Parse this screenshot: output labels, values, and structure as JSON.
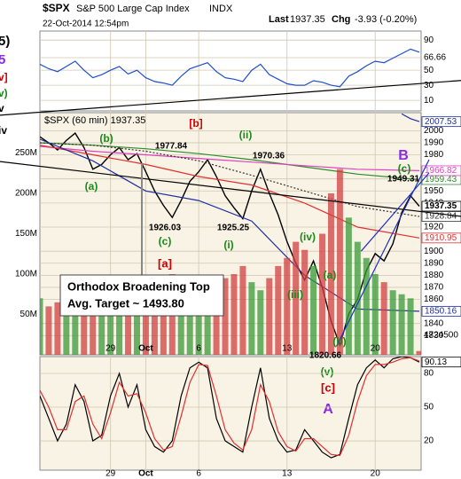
{
  "header": {
    "symbol": "$SPX",
    "name": "S&P 500 Large Cap Index",
    "exchange": "INDX",
    "datetime": "22-Oct-2014 12:54pm",
    "last_label": "Last",
    "last": "1937.35",
    "chg_label": "Chg",
    "chg": "-3.93 (-0.20%)"
  },
  "left_margin": [
    {
      "text": "5)",
      "color": "#000000"
    },
    {
      "text": "5",
      "color": "#8a2be2"
    },
    {
      "text": "v]",
      "color": "#cc0000"
    },
    {
      "text": "v)",
      "color": "#1a8a1a"
    },
    {
      "text": "v",
      "color": "#000000"
    },
    {
      "text": "iv",
      "color": "#000000"
    }
  ],
  "callout": {
    "lines": [
      "Orthodox Broadening Top",
      "Avg. Target ~ 1493.80"
    ]
  },
  "chart_data": [
    {
      "type": "line",
      "xlim": [
        0,
        21.6
      ],
      "ylim": [
        -4,
        102
      ],
      "yticks": [
        90,
        66.66,
        50,
        30,
        10
      ],
      "grid": true,
      "xticks": [
        {
          "value": 4,
          "label": "29"
        },
        {
          "value": 6,
          "label": "Oct"
        },
        {
          "value": 9,
          "label": "6"
        },
        {
          "value": 14,
          "label": "13"
        },
        {
          "value": 19,
          "label": "20"
        }
      ],
      "x": [
        0,
        0.5,
        1,
        1.5,
        2,
        2.5,
        3,
        3.5,
        4,
        4.5,
        5,
        5.5,
        6,
        6.5,
        7,
        7.5,
        8,
        8.5,
        9,
        9.5,
        10,
        10.5,
        11,
        11.5,
        12,
        12.5,
        13,
        13.5,
        14,
        14.5,
        15,
        15.5,
        16,
        16.5,
        17,
        17.5,
        18,
        18.5,
        19,
        19.5,
        20,
        20.5,
        21,
        21.5
      ],
      "series": [
        {
          "color": "#1f4fc9",
          "values": [
            58,
            52,
            48,
            55,
            62,
            50,
            40,
            44,
            50,
            55,
            45,
            50,
            40,
            35,
            33,
            30,
            42,
            52,
            56,
            60,
            48,
            40,
            38,
            35,
            50,
            58,
            44,
            38,
            32,
            30,
            30,
            36,
            34,
            30,
            28,
            42,
            48,
            56,
            62,
            60,
            66,
            72,
            78,
            74
          ]
        }
      ],
      "trendlines": [
        {
          "color": "#000000",
          "x": [
            -2.3,
            24.4
          ],
          "values": [
            -9.8,
            37.3
          ]
        }
      ]
    },
    {
      "type": "line",
      "title": "$SPX (60 min) 1937.35",
      "xlim": [
        0,
        21.6
      ],
      "ylim": [
        1814,
        2015
      ],
      "grid": true,
      "yticks": [
        2000,
        1990,
        1980,
        1960,
        1950,
        1940,
        1920,
        1900,
        1890,
        1880,
        1870,
        1860,
        1840,
        1830
      ],
      "xticks": [
        {
          "value": 4,
          "label": "29"
        },
        {
          "value": 6,
          "label": "Oct"
        },
        {
          "value": 9,
          "label": "6"
        },
        {
          "value": 14,
          "label": "13"
        },
        {
          "value": 19,
          "label": "20"
        }
      ],
      "y2lim": [
        0,
        300000000
      ],
      "y2ticks": [
        {
          "value": 250000000,
          "label": "250M"
        },
        {
          "value": 200000000,
          "label": "200M"
        },
        {
          "value": 150000000,
          "label": "150M"
        },
        {
          "value": 100000000,
          "label": "100M"
        },
        {
          "value": 50000000,
          "label": "50M"
        }
      ],
      "x": [
        0,
        0.5,
        1,
        1.5,
        2,
        2.5,
        3,
        3.5,
        4,
        4.5,
        5,
        5.5,
        6,
        6.5,
        7,
        7.5,
        8,
        8.5,
        9,
        9.5,
        10,
        10.5,
        11,
        11.5,
        12,
        12.5,
        13,
        13.5,
        14,
        14.5,
        15,
        15.5,
        16,
        16.5,
        17,
        17.5,
        18,
        18.5,
        19,
        19.5,
        20,
        20.5,
        21,
        21.5
      ],
      "series": [
        {
          "color": "#000000",
          "width": 1.4,
          "label_box": true,
          "values": [
            1995,
            1990,
            1984,
            1992,
            1998,
            1986,
            1968,
            1972,
            1980,
            1986,
            1976,
            1981,
            1966,
            1950,
            1938,
            1928,
            1942,
            1958,
            1966,
            1976,
            1962,
            1946,
            1936,
            1927,
            1950,
            1968,
            1948,
            1930,
            1908,
            1890,
            1876,
            1892,
            1870,
            1842,
            1822,
            1848,
            1860,
            1884,
            1898,
            1892,
            1906,
            1932,
            1946,
            1937.35
          ]
        },
        {
          "color": "#2e8b2e",
          "label_box": true,
          "x": [
            0,
            3,
            6,
            9,
            12,
            15,
            18,
            21.5
          ],
          "values": [
            1990,
            1988,
            1985,
            1981,
            1976,
            1970,
            1964,
            1959.43
          ]
        },
        {
          "color": "#e040c0",
          "label_box": true,
          "x": [
            0,
            3,
            6,
            9,
            12,
            15,
            18,
            21.5
          ],
          "values": [
            1987,
            1983,
            1980,
            1977,
            1974,
            1971,
            1968,
            1966.82
          ]
        },
        {
          "color": "#333333",
          "dash": true,
          "label_box": true,
          "x": [
            0,
            3,
            6,
            9,
            12,
            15,
            18,
            21.5
          ],
          "values": [
            1990,
            1988,
            1983,
            1975,
            1963,
            1950,
            1937,
            1928.84
          ]
        },
        {
          "color": "#e03030",
          "label_box": true,
          "x": [
            0,
            3,
            6,
            9,
            12,
            15,
            18,
            21.5
          ],
          "values": [
            1988,
            1980,
            1972,
            1962,
            1955,
            1940,
            1920,
            1910.95
          ]
        },
        {
          "color": "#1f2fa0",
          "label_box": true,
          "x": [
            0,
            3,
            6,
            9,
            12,
            15,
            18,
            21.5
          ],
          "values": [
            1993,
            1975,
            1950,
            1942,
            1925,
            1880,
            1852,
            1850.16
          ]
        },
        {
          "color": "#1f2fa0",
          "label_box": true,
          "x": [
            20.5,
            21,
            21.5
          ],
          "values": [
            2014,
            2010,
            2007.53
          ]
        },
        {
          "type": "bar",
          "axis": "y2",
          "label_box": true,
          "up_color": "#3a9a3a",
          "down_color": "#d04040",
          "values": [
            70000000,
            60000000,
            65000000,
            55000000,
            80000000,
            75000000,
            90000000,
            70000000,
            60000000,
            65000000,
            70000000,
            60000000,
            85000000,
            90000000,
            95000000,
            100000000,
            80000000,
            70000000,
            65000000,
            60000000,
            85000000,
            95000000,
            100000000,
            110000000,
            90000000,
            80000000,
            95000000,
            110000000,
            120000000,
            140000000,
            130000000,
            110000000,
            150000000,
            200000000,
            230000000,
            170000000,
            140000000,
            120000000,
            100000000,
            90000000,
            80000000,
            75000000,
            70000000,
            4724500
          ]
        }
      ],
      "trendlines": [
        {
          "color": "#000000",
          "x": [
            -2.3,
            24.4
          ],
          "values": [
            1974.5,
            1928
          ]
        },
        {
          "color": "#2030c0",
          "x": [
            16.8,
            22.05
          ],
          "values": [
            1821,
            1976
          ]
        },
        {
          "color": "#2030c0",
          "x": [
            18.2,
            22.05
          ],
          "values": [
            1900,
            1965
          ]
        }
      ],
      "annotations": [
        {
          "text": "[b]",
          "color": "#cc0000"
        },
        {
          "text": "(ii)",
          "color": "#1a8a1a"
        },
        {
          "text": "(b)",
          "color": "#1a8a1a"
        },
        {
          "text": "1977.84",
          "color": "#000000"
        },
        {
          "text": "1970.36",
          "color": "#000000"
        },
        {
          "text": "(a)",
          "color": "#1a8a1a"
        },
        {
          "text": "1926.03",
          "color": "#000000"
        },
        {
          "text": "(c)",
          "color": "#1a8a1a"
        },
        {
          "text": "[a]",
          "color": "#cc0000"
        },
        {
          "text": "1925.25",
          "color": "#000000"
        },
        {
          "text": "(i)",
          "color": "#1a8a1a"
        },
        {
          "text": "(iv)",
          "color": "#1a8a1a"
        },
        {
          "text": "(iii)",
          "color": "#1a8a1a"
        },
        {
          "text": "(a)",
          "color": "#1a8a1a"
        },
        {
          "text": "(b)",
          "color": "#1a8a1a"
        },
        {
          "text": "1820.66",
          "color": "#000000"
        },
        {
          "text": "(v)",
          "color": "#1a8a1a"
        },
        {
          "text": "[c]",
          "color": "#cc0000"
        },
        {
          "text": "A",
          "color": "#8a2be2"
        },
        {
          "text": "B",
          "color": "#8a2be2"
        },
        {
          "text": "(c)",
          "color": "#1a8a1a"
        },
        {
          "text": "1949.31",
          "color": "#000000"
        }
      ]
    },
    {
      "type": "line",
      "xlim": [
        0,
        21.6
      ],
      "ylim": [
        -6,
        95
      ],
      "yticks": [
        80,
        50,
        20
      ],
      "grid": true,
      "xticks": [
        {
          "value": 4,
          "label": "29"
        },
        {
          "value": 6,
          "label": "Oct"
        },
        {
          "value": 9,
          "label": "6"
        },
        {
          "value": 14,
          "label": "13"
        },
        {
          "value": 19,
          "label": "20"
        }
      ],
      "x": [
        0,
        0.5,
        1,
        1.5,
        2,
        2.5,
        3,
        3.5,
        4,
        4.5,
        5,
        5.5,
        6,
        6.5,
        7,
        7.5,
        8,
        8.5,
        9,
        9.5,
        10,
        10.5,
        11,
        11.5,
        12,
        12.5,
        13,
        13.5,
        14,
        14.5,
        15,
        15.5,
        16,
        16.5,
        17,
        17.5,
        18,
        18.5,
        19,
        19.5,
        20,
        20.5,
        21,
        21.5
      ],
      "series": [
        {
          "color": "#000000",
          "label_box": true,
          "values": [
            60,
            40,
            20,
            35,
            70,
            55,
            20,
            25,
            60,
            80,
            50,
            70,
            30,
            15,
            10,
            20,
            60,
            85,
            90,
            85,
            40,
            20,
            15,
            10,
            50,
            85,
            40,
            20,
            10,
            12,
            30,
            20,
            10,
            5,
            8,
            40,
            70,
            85,
            92,
            85,
            93,
            95,
            94,
            90.13
          ]
        },
        {
          "color": "#e03030",
          "values": [
            65,
            50,
            30,
            30,
            55,
            60,
            35,
            22,
            45,
            72,
            60,
            62,
            45,
            22,
            12,
            15,
            42,
            72,
            88,
            87,
            60,
            30,
            18,
            12,
            30,
            70,
            55,
            28,
            15,
            11,
            22,
            22,
            15,
            8,
            7,
            25,
            55,
            78,
            88,
            88,
            90,
            93,
            94,
            91
          ]
        }
      ]
    }
  ]
}
